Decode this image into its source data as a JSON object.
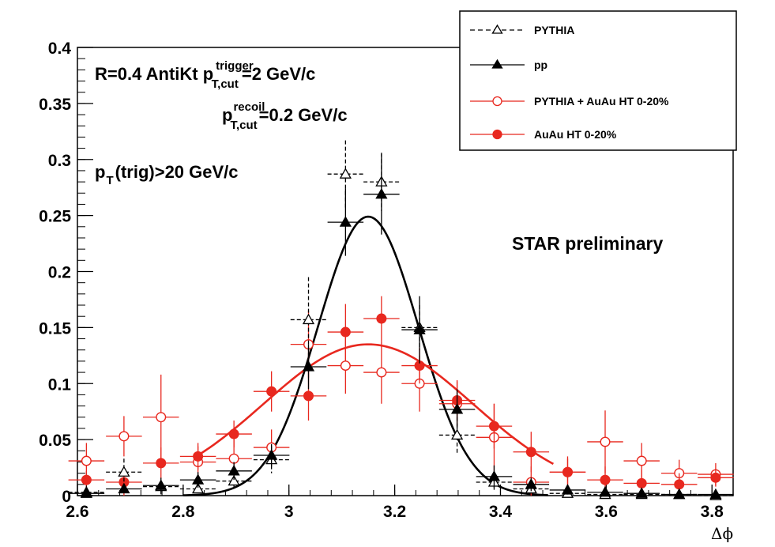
{
  "chart_data": {
    "type": "scatter",
    "xlabel": "Δϕ",
    "ylabel": "",
    "xlim": [
      2.6,
      3.84
    ],
    "ylim": [
      0,
      0.4
    ],
    "x_ticks": [
      "2.6",
      "2.8",
      "3",
      "3.2",
      "3.4",
      "3.6",
      "3.8"
    ],
    "x_tick_values": [
      2.6,
      2.8,
      3.0,
      3.2,
      3.4,
      3.6,
      3.8
    ],
    "y_ticks": [
      "0",
      "0.05",
      "0.1",
      "0.15",
      "0.2",
      "0.25",
      "0.3",
      "0.35",
      "0.4"
    ],
    "y_tick_values": [
      0,
      0.05,
      0.1,
      0.15,
      0.2,
      0.25,
      0.3,
      0.35,
      0.4
    ],
    "bin_half_width": 0.034,
    "series": [
      {
        "name": "PYTHIA",
        "marker": "open-triangle",
        "line": "dashed",
        "color": "#000000",
        "x": [
          2.617,
          2.688,
          2.758,
          2.828,
          2.896,
          2.967,
          3.037,
          3.107,
          3.175,
          3.247,
          3.318,
          3.388,
          3.458,
          3.527,
          3.598,
          3.667,
          3.738,
          3.807
        ],
        "y": [
          0.003,
          0.021,
          0.008,
          0.006,
          0.013,
          0.032,
          0.157,
          0.287,
          0.28,
          0.15,
          0.054,
          0.012,
          0.006,
          0.002,
          0.001,
          0.001,
          0.001,
          0.0
        ],
        "yerr": [
          0.006,
          0.012,
          0.008,
          0.006,
          0.008,
          0.012,
          0.038,
          0.03,
          0.026,
          0.02,
          0.016,
          0.008,
          0.004,
          0.002,
          0.001,
          0.001,
          0.001,
          0.001
        ]
      },
      {
        "name": "pp",
        "marker": "filled-triangle",
        "line": "solid",
        "color": "#000000",
        "x": [
          2.617,
          2.688,
          2.758,
          2.828,
          2.896,
          2.967,
          3.037,
          3.107,
          3.175,
          3.247,
          3.318,
          3.388,
          3.458,
          3.527,
          3.598,
          3.667,
          3.738,
          3.807
        ],
        "y": [
          0.002,
          0.006,
          0.009,
          0.014,
          0.022,
          0.036,
          0.115,
          0.244,
          0.269,
          0.148,
          0.077,
          0.017,
          0.01,
          0.005,
          0.003,
          0.002,
          0.001,
          0.001
        ],
        "yerr": [
          0.003,
          0.004,
          0.005,
          0.007,
          0.008,
          0.01,
          0.02,
          0.03,
          0.036,
          0.03,
          0.018,
          0.01,
          0.006,
          0.004,
          0.003,
          0.002,
          0.001,
          0.001
        ]
      },
      {
        "name": "PYTHIA + AuAu HT 0-20%",
        "marker": "open-circle",
        "line": "solid",
        "color": "#e8281f",
        "x": [
          2.617,
          2.688,
          2.758,
          2.828,
          2.896,
          2.967,
          3.037,
          3.107,
          3.175,
          3.247,
          3.318,
          3.388,
          3.458,
          3.527,
          3.598,
          3.667,
          3.738,
          3.807
        ],
        "y": [
          0.031,
          0.053,
          0.07,
          0.03,
          0.033,
          0.043,
          0.135,
          0.116,
          0.11,
          0.1,
          0.082,
          0.052,
          0.012,
          0.021,
          0.048,
          0.031,
          0.02,
          0.019
        ],
        "yerr": [
          0.016,
          0.018,
          0.038,
          0.014,
          0.018,
          0.016,
          0.03,
          0.025,
          0.028,
          0.025,
          0.02,
          0.03,
          0.014,
          0.014,
          0.028,
          0.016,
          0.012,
          0.01
        ]
      },
      {
        "name": "AuAu HT 0-20%",
        "marker": "filled-circle",
        "line": "solid",
        "color": "#e8281f",
        "x": [
          2.617,
          2.688,
          2.758,
          2.828,
          2.896,
          2.967,
          3.037,
          3.107,
          3.175,
          3.247,
          3.318,
          3.388,
          3.458,
          3.527,
          3.598,
          3.667,
          3.738,
          3.807
        ],
        "y": [
          0.014,
          0.012,
          0.029,
          0.035,
          0.055,
          0.093,
          0.089,
          0.146,
          0.158,
          0.116,
          0.085,
          0.062,
          0.039,
          0.021,
          0.014,
          0.011,
          0.01,
          0.016
        ],
        "yerr": [
          0.008,
          0.012,
          0.014,
          0.012,
          0.012,
          0.018,
          0.022,
          0.025,
          0.02,
          0.016,
          0.018,
          0.02,
          0.018,
          0.012,
          0.012,
          0.012,
          0.01,
          0.008
        ]
      }
    ],
    "fits": [
      {
        "name": "pp fit",
        "color": "#000000",
        "shape": "gaussian",
        "amplitude": 0.249,
        "mean": 3.15,
        "sigma": 0.095,
        "x_range": [
          2.8,
          3.49
        ]
      },
      {
        "name": "AuAu fit",
        "color": "#e8281f",
        "shape": "gaussian",
        "amplitude": 0.135,
        "mean": 3.15,
        "sigma": 0.198,
        "x_range": [
          2.82,
          3.5
        ]
      }
    ]
  },
  "annotations": {
    "line1_prefix": "R=0.4 AntiKt p",
    "line1_sup": "trigger",
    "line1_sub": "T,cut",
    "line1_suffix": "=2 GeV/c",
    "line2_prefix": "p",
    "line2_sup": "recoil",
    "line2_sub": "T,cut",
    "line2_suffix": "=0.2 GeV/c",
    "line3_prefix": "p",
    "line3_sub": "T",
    "line3_suffix": "(trig)>20 GeV/c",
    "preliminary": "STAR preliminary"
  },
  "legend": {
    "position": "top-right",
    "entries": [
      "PYTHIA",
      "pp",
      "PYTHIA + AuAu HT 0-20%",
      "AuAu HT 0-20%"
    ]
  }
}
